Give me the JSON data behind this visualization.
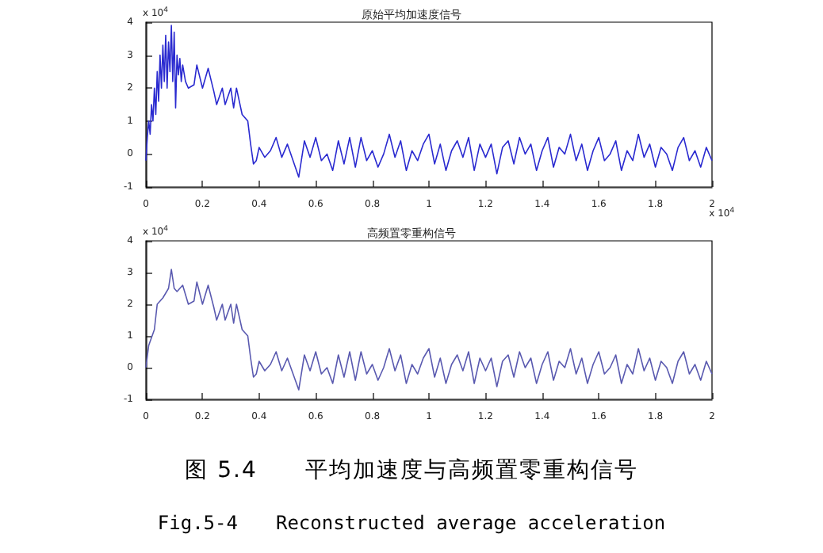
{
  "chart_data": [
    {
      "type": "line",
      "title": "原始平均加速度信号",
      "xlim": [
        0,
        2
      ],
      "ylim": [
        -1,
        4
      ],
      "xticks": [
        0,
        0.2,
        0.4,
        0.6,
        0.8,
        1,
        1.2,
        1.4,
        1.6,
        1.8,
        2
      ],
      "yticks": [
        -1,
        0,
        1,
        2,
        3,
        4
      ],
      "grid": false,
      "marker": "none",
      "line_style": "solid",
      "annotations": [
        "x 10$^{4}$",
        "x 10$^{4}$"
      ],
      "series": [
        {
          "color": "#2a2ad0",
          "x": [
            0,
            0.005,
            0.01,
            0.015,
            0.02,
            0.025,
            0.03,
            0.035,
            0.04,
            0.045,
            0.05,
            0.055,
            0.06,
            0.065,
            0.07,
            0.075,
            0.08,
            0.085,
            0.09,
            0.095,
            0.1,
            0.105,
            0.11,
            0.115,
            0.12,
            0.125,
            0.13,
            0.14,
            0.15,
            0.17,
            0.18,
            0.2,
            0.22,
            0.24,
            0.25,
            0.27,
            0.28,
            0.3,
            0.31,
            0.32,
            0.34,
            0.36,
            0.37,
            0.38,
            0.39,
            0.4,
            0.42,
            0.44,
            0.46,
            0.48,
            0.5,
            0.52,
            0.54,
            0.56,
            0.58,
            0.6,
            0.62,
            0.64,
            0.66,
            0.68,
            0.7,
            0.72,
            0.74,
            0.76,
            0.78,
            0.8,
            0.82,
            0.84,
            0.86,
            0.88,
            0.9,
            0.92,
            0.94,
            0.96,
            0.98,
            1,
            1.02,
            1.04,
            1.06,
            1.08,
            1.1,
            1.12,
            1.14,
            1.16,
            1.18,
            1.2,
            1.22,
            1.24,
            1.26,
            1.28,
            1.3,
            1.32,
            1.34,
            1.36,
            1.38,
            1.4,
            1.42,
            1.44,
            1.46,
            1.48,
            1.5,
            1.52,
            1.54,
            1.56,
            1.58,
            1.6,
            1.62,
            1.64,
            1.66,
            1.68,
            1.7,
            1.72,
            1.74,
            1.76,
            1.78,
            1.8,
            1.82,
            1.84,
            1.86,
            1.88,
            1.9,
            1.92,
            1.94,
            1.96,
            1.98,
            2
          ],
          "values": [
            -0.2,
            0.5,
            1.0,
            0.6,
            1.5,
            1.0,
            2.0,
            1.2,
            2.5,
            1.6,
            3.0,
            2.0,
            3.3,
            2.2,
            3.6,
            2.0,
            3.4,
            2.5,
            3.9,
            2.2,
            3.7,
            1.4,
            3.0,
            2.4,
            2.9,
            2.2,
            2.7,
            2.2,
            2.0,
            2.1,
            2.7,
            2.0,
            2.6,
            1.9,
            1.5,
            2.0,
            1.5,
            2.0,
            1.4,
            2.0,
            1.2,
            1.0,
            0.3,
            -0.3,
            -0.2,
            0.2,
            -0.1,
            0.1,
            0.5,
            -0.1,
            0.3,
            -0.2,
            -0.7,
            0.4,
            -0.1,
            0.5,
            -0.2,
            0.0,
            -0.5,
            0.4,
            -0.3,
            0.5,
            -0.4,
            0.5,
            -0.2,
            0.1,
            -0.4,
            0.0,
            0.6,
            -0.1,
            0.4,
            -0.5,
            0.1,
            -0.2,
            0.3,
            0.6,
            -0.3,
            0.3,
            -0.5,
            0.1,
            0.4,
            -0.1,
            0.5,
            -0.5,
            0.3,
            -0.1,
            0.3,
            -0.6,
            0.2,
            0.4,
            -0.3,
            0.5,
            0.0,
            0.3,
            -0.5,
            0.1,
            0.5,
            -0.4,
            0.2,
            0.0,
            0.6,
            -0.2,
            0.3,
            -0.5,
            0.1,
            0.5,
            -0.2,
            0.0,
            0.4,
            -0.5,
            0.1,
            -0.2,
            0.6,
            -0.1,
            0.3,
            -0.4,
            0.2,
            0.0,
            -0.5,
            0.2,
            0.5,
            -0.2,
            0.1,
            -0.4,
            0.2,
            -0.2
          ]
        }
      ]
    },
    {
      "type": "line",
      "title": "高频置零重构信号",
      "xlim": [
        0,
        2
      ],
      "ylim": [
        -1,
        4
      ],
      "xticks": [
        0,
        0.2,
        0.4,
        0.6,
        0.8,
        1,
        1.2,
        1.4,
        1.6,
        1.8,
        2
      ],
      "yticks": [
        -1,
        0,
        1,
        2,
        3,
        4
      ],
      "grid": false,
      "marker": "none",
      "line_style": "solid",
      "annotations": [
        "x 10$^{4}$",
        "图 5.4　　平均加速度与高频置零重构信号",
        "Fig.5-4　　Reconstructed average acceleration"
      ],
      "series": [
        {
          "color": "#5a5ab0",
          "x": [
            0,
            0.01,
            0.03,
            0.04,
            0.06,
            0.08,
            0.09,
            0.1,
            0.11,
            0.13,
            0.15,
            0.17,
            0.18,
            0.2,
            0.22,
            0.24,
            0.25,
            0.27,
            0.28,
            0.3,
            0.31,
            0.32,
            0.34,
            0.36,
            0.37,
            0.38,
            0.39,
            0.4,
            0.42,
            0.44,
            0.46,
            0.48,
            0.5,
            0.52,
            0.54,
            0.56,
            0.58,
            0.6,
            0.62,
            0.64,
            0.66,
            0.68,
            0.7,
            0.72,
            0.74,
            0.76,
            0.78,
            0.8,
            0.82,
            0.84,
            0.86,
            0.88,
            0.9,
            0.92,
            0.94,
            0.96,
            0.98,
            1,
            1.02,
            1.04,
            1.06,
            1.08,
            1.1,
            1.12,
            1.14,
            1.16,
            1.18,
            1.2,
            1.22,
            1.24,
            1.26,
            1.28,
            1.3,
            1.32,
            1.34,
            1.36,
            1.38,
            1.4,
            1.42,
            1.44,
            1.46,
            1.48,
            1.5,
            1.52,
            1.54,
            1.56,
            1.58,
            1.6,
            1.62,
            1.64,
            1.66,
            1.68,
            1.7,
            1.72,
            1.74,
            1.76,
            1.78,
            1.8,
            1.82,
            1.84,
            1.86,
            1.88,
            1.9,
            1.92,
            1.94,
            1.96,
            1.98,
            2
          ],
          "values": [
            0.0,
            0.7,
            1.2,
            2.0,
            2.2,
            2.5,
            3.1,
            2.5,
            2.4,
            2.6,
            2.0,
            2.1,
            2.7,
            2.0,
            2.6,
            1.9,
            1.5,
            2.0,
            1.5,
            2.0,
            1.4,
            2.0,
            1.2,
            1.0,
            0.3,
            -0.3,
            -0.2,
            0.2,
            -0.1,
            0.1,
            0.5,
            -0.1,
            0.3,
            -0.2,
            -0.7,
            0.4,
            -0.1,
            0.5,
            -0.2,
            0.0,
            -0.5,
            0.4,
            -0.3,
            0.5,
            -0.4,
            0.5,
            -0.2,
            0.1,
            -0.4,
            0.0,
            0.6,
            -0.1,
            0.4,
            -0.5,
            0.1,
            -0.2,
            0.3,
            0.6,
            -0.3,
            0.3,
            -0.5,
            0.1,
            0.4,
            -0.1,
            0.5,
            -0.5,
            0.3,
            -0.1,
            0.3,
            -0.6,
            0.2,
            0.4,
            -0.3,
            0.5,
            0.0,
            0.3,
            -0.5,
            0.1,
            0.5,
            -0.4,
            0.2,
            0.0,
            0.6,
            -0.2,
            0.3,
            -0.5,
            0.1,
            0.5,
            -0.2,
            0.0,
            0.4,
            -0.5,
            0.1,
            -0.2,
            0.6,
            -0.1,
            0.3,
            -0.4,
            0.2,
            0.0,
            -0.5,
            0.2,
            0.5,
            -0.2,
            0.1,
            -0.4,
            0.2,
            -0.2
          ]
        }
      ]
    }
  ]
}
